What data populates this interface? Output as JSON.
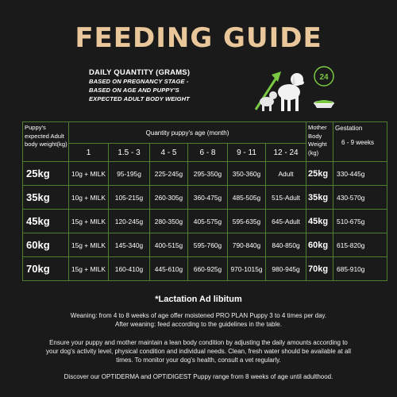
{
  "title": "FEEDING GUIDE",
  "daily": {
    "heading": "DAILY QUANTITY (GRAMS)",
    "lines": [
      "BASED ON PREGNANCY STAGE -",
      "BASED ON AGE AND PUPPY'S",
      "EXPECTED ADULT BODY WEIGHT"
    ]
  },
  "clock_badge": "24",
  "table": {
    "puppy_header": "Puppy's expected Adult body weight(kg)",
    "quantity_header": "Quantity puppy's age (month)",
    "mother_header": "Mother Body Weight (kg)",
    "gestation_header": "Gestation",
    "gestation_sub": "6 - 9 weeks",
    "ages": [
      "1",
      "1.5 - 3",
      "4 - 5",
      "6 - 8",
      "9 - 11",
      "12 - 24"
    ],
    "rows": [
      {
        "weight": "25kg",
        "values": [
          "10g + MILK",
          "95-195g",
          "225-245g",
          "295-350g",
          "350-360g",
          "Adult"
        ],
        "mother": "25kg",
        "gestation": "330-445g"
      },
      {
        "weight": "35kg",
        "values": [
          "10g + MILK",
          "105-215g",
          "260-305g",
          "360-475g",
          "485-505g",
          "515-Adult"
        ],
        "mother": "35kg",
        "gestation": "430-570g"
      },
      {
        "weight": "45kg",
        "values": [
          "15g + MILK",
          "120-245g",
          "280-350g",
          "405-575g",
          "595-635g",
          "645-Adult"
        ],
        "mother": "45kg",
        "gestation": "510-675g"
      },
      {
        "weight": "60kg",
        "values": [
          "15g + MILK",
          "145-340g",
          "400-515g",
          "595-760g",
          "790-840g",
          "840-850g"
        ],
        "mother": "60kg",
        "gestation": "615-820g"
      },
      {
        "weight": "70kg",
        "values": [
          "15g + MILK",
          "160-410g",
          "445-610g",
          "660-925g",
          "970-1015g",
          "980-945g"
        ],
        "mother": "70kg",
        "gestation": "685-910g"
      }
    ]
  },
  "lactation": "*Lactation Ad libitum",
  "weaning": [
    "Weaning: from 4 to 8 weeks of age offer moistened PRO PLAN Puppy 3 to 4 times per day.",
    "After weaning: feed according to the guidelines in the table."
  ],
  "ensure": [
    "Ensure your puppy and mother maintain a lean body condition by adjusting the daily amounts according to",
    "your dog's activity level, physical condition and individual needs. Clean, fresh water should be available at all",
    "times. To monitor your dog's health, consult a vet regularly."
  ],
  "discover": "Discover our OPTIDERMA and OPTIDIGEST Puppy range from 8 weeks of age until adulthood.",
  "colors": {
    "background": "#1a1a1a",
    "title": "#e9c79b",
    "grid_border": "#4d7f2e",
    "accent_green": "#7ac943"
  }
}
